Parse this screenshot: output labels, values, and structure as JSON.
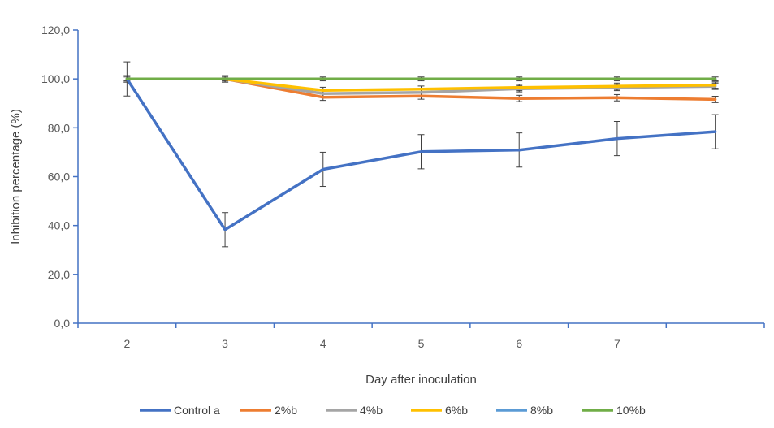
{
  "chart_data": {
    "type": "line",
    "xlabel": "Day after inoculation",
    "ylabel": "Inhibition percentage (%)",
    "ylim": [
      0,
      120
    ],
    "yticks": [
      "0,0",
      "20,0",
      "40,0",
      "60,0",
      "80,0",
      "100,0",
      "120,0"
    ],
    "categories": [
      "2",
      "3",
      "4",
      "5",
      "6",
      "7",
      ""
    ],
    "grid": false,
    "legend_position": "bottom",
    "series": [
      {
        "name": "Control a",
        "color": "#4472C4",
        "values": [
          100,
          38.3,
          63,
          70.2,
          70.9,
          75.6,
          78.4
        ],
        "errors": [
          7,
          7,
          7,
          7,
          7,
          7,
          7
        ]
      },
      {
        "name": "2%b",
        "color": "#ED7D31",
        "values": [
          100,
          100,
          92.5,
          93,
          92,
          92.3,
          91.6
        ],
        "errors": [
          1.3,
          1.3,
          1.3,
          1.3,
          1.3,
          1.3,
          1.3
        ]
      },
      {
        "name": "4%b",
        "color": "#A5A5A5",
        "values": [
          100,
          100,
          94,
          94.5,
          96,
          96.5,
          97
        ],
        "errors": [
          1.3,
          1.3,
          1.3,
          1.3,
          1.3,
          1.3,
          1.3
        ]
      },
      {
        "name": "6%b",
        "color": "#FFC000",
        "values": [
          100,
          100,
          95.3,
          95.8,
          96.5,
          97,
          97.5
        ],
        "errors": [
          1.3,
          1.3,
          1.3,
          1.3,
          1.3,
          1.3,
          1.3
        ]
      },
      {
        "name": "8%b",
        "color": "#5B9BD5",
        "values": [
          100,
          100,
          100,
          100,
          100,
          100,
          100
        ],
        "errors": [
          0.8,
          0.8,
          0.8,
          0.8,
          0.8,
          0.8,
          0.8
        ]
      },
      {
        "name": "10%b",
        "color": "#70AD47",
        "values": [
          100,
          100,
          100,
          100,
          100,
          100,
          100
        ],
        "errors": [
          0,
          0,
          0,
          0,
          0,
          0,
          0
        ]
      }
    ]
  }
}
